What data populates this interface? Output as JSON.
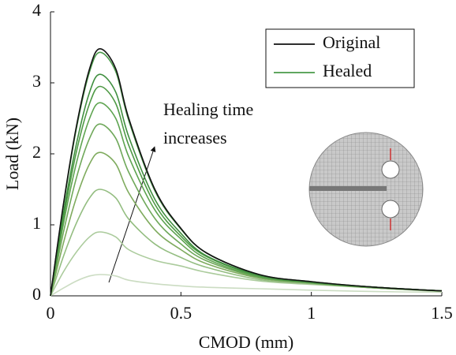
{
  "chart_data": {
    "type": "line",
    "xlabel": "CMOD (mm)",
    "ylabel": "Load (kN)",
    "annotation": [
      "Healing time",
      "increases"
    ],
    "x": [
      0,
      0.05,
      0.1,
      0.15,
      0.19,
      0.25,
      0.3,
      0.4,
      0.5,
      0.6,
      0.8,
      1.0,
      1.25,
      1.5
    ],
    "xlim": [
      0,
      1.5
    ],
    "xticks": [
      0,
      0.5,
      1,
      1.5
    ],
    "ylim": [
      0,
      4
    ],
    "yticks": [
      0,
      1,
      2,
      3,
      4
    ],
    "legend": "upper right",
    "series": [
      {
        "name": "Original",
        "color": "#111111",
        "values": [
          0,
          1.3,
          2.4,
          3.2,
          3.48,
          3.2,
          2.5,
          1.5,
          0.95,
          0.6,
          0.3,
          0.2,
          0.12,
          0.07
        ]
      },
      {
        "name": "Healed",
        "color": "#4a9a4a",
        "values": [
          0,
          1.28,
          2.37,
          3.16,
          3.43,
          3.16,
          2.47,
          1.48,
          0.94,
          0.6,
          0.3,
          0.2,
          0.12,
          0.07
        ]
      },
      {
        "color": "#3f8f3f",
        "values": [
          0,
          1.17,
          2.15,
          2.87,
          3.12,
          2.87,
          2.24,
          1.36,
          0.88,
          0.56,
          0.29,
          0.19,
          0.12,
          0.07
        ]
      },
      {
        "color": "#4f9a45",
        "values": [
          0,
          1.1,
          2.04,
          2.71,
          2.95,
          2.71,
          2.12,
          1.29,
          0.84,
          0.55,
          0.28,
          0.19,
          0.12,
          0.07
        ]
      },
      {
        "color": "#5ea450",
        "values": [
          0,
          1.02,
          1.88,
          2.5,
          2.72,
          2.5,
          1.96,
          1.21,
          0.8,
          0.52,
          0.27,
          0.19,
          0.12,
          0.07
        ]
      },
      {
        "color": "#6fa85a",
        "values": [
          0,
          0.9,
          1.67,
          2.22,
          2.42,
          2.22,
          1.74,
          1.09,
          0.73,
          0.49,
          0.26,
          0.18,
          0.11,
          0.07
        ]
      },
      {
        "color": "#7fab5e",
        "values": [
          0,
          0.75,
          1.39,
          1.86,
          2.02,
          1.86,
          1.45,
          0.93,
          0.65,
          0.45,
          0.25,
          0.18,
          0.11,
          0.07
        ]
      },
      {
        "color": "#93bd80",
        "values": [
          0,
          0.56,
          1.03,
          1.38,
          1.5,
          1.38,
          1.08,
          0.73,
          0.54,
          0.4,
          0.23,
          0.17,
          0.11,
          0.07
        ]
      },
      {
        "color": "#abcb9c",
        "values": [
          0,
          0.34,
          0.62,
          0.83,
          0.9,
          0.83,
          0.65,
          0.5,
          0.42,
          0.33,
          0.21,
          0.16,
          0.11,
          0.06
        ]
      },
      {
        "color": "#cbdcc2",
        "values": [
          0,
          0.11,
          0.21,
          0.28,
          0.3,
          0.28,
          0.22,
          0.17,
          0.14,
          0.12,
          0.1,
          0.08,
          0.06,
          0.05
        ]
      }
    ]
  }
}
